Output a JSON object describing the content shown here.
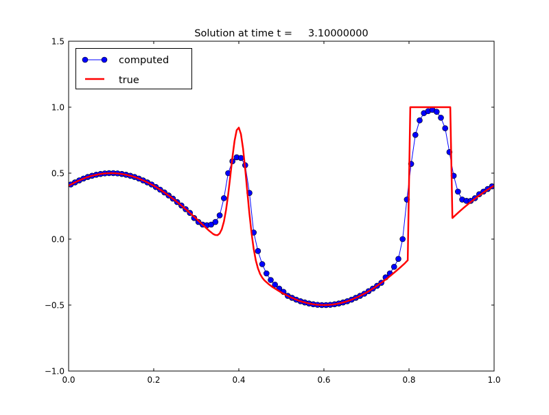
{
  "chart_data": {
    "type": "line",
    "title": "Solution at time t =     3.10000000",
    "xlabel": "",
    "ylabel": "",
    "xlim": [
      0.0,
      1.0
    ],
    "ylim": [
      -1.0,
      1.5
    ],
    "grid": false,
    "legend_placement": "top-left",
    "xticks": [
      0.0,
      0.2,
      0.4,
      0.6,
      0.8,
      1.0
    ],
    "xtick_labels": [
      "0.0",
      "0.2",
      "0.4",
      "0.6",
      "0.8",
      "1.0"
    ],
    "yticks": [
      -1.0,
      -0.5,
      0.0,
      0.5,
      1.0,
      1.5
    ],
    "ytick_labels": [
      "−1.0",
      "−0.5",
      "0.0",
      "0.5",
      "1.0",
      "1.5"
    ],
    "series": [
      {
        "name": "computed",
        "color": "#0000ff",
        "marker": "circle",
        "x": [
          0.005,
          0.015,
          0.025,
          0.035,
          0.045,
          0.055,
          0.065,
          0.075,
          0.085,
          0.095,
          0.105,
          0.115,
          0.125,
          0.135,
          0.145,
          0.155,
          0.165,
          0.175,
          0.185,
          0.195,
          0.205,
          0.215,
          0.225,
          0.235,
          0.245,
          0.255,
          0.265,
          0.275,
          0.285,
          0.295,
          0.305,
          0.315,
          0.325,
          0.335,
          0.345,
          0.355,
          0.365,
          0.375,
          0.385,
          0.395,
          0.405,
          0.415,
          0.425,
          0.435,
          0.445,
          0.455,
          0.465,
          0.475,
          0.485,
          0.495,
          0.505,
          0.515,
          0.525,
          0.535,
          0.545,
          0.555,
          0.565,
          0.575,
          0.585,
          0.595,
          0.605,
          0.615,
          0.625,
          0.635,
          0.645,
          0.655,
          0.665,
          0.675,
          0.685,
          0.695,
          0.705,
          0.715,
          0.725,
          0.735,
          0.745,
          0.755,
          0.765,
          0.775,
          0.785,
          0.795,
          0.805,
          0.815,
          0.825,
          0.835,
          0.845,
          0.855,
          0.865,
          0.875,
          0.885,
          0.895,
          0.905,
          0.915,
          0.925,
          0.935,
          0.945,
          0.955,
          0.965,
          0.975,
          0.985,
          0.995
        ],
        "y": [
          0.414,
          0.43,
          0.445,
          0.459,
          0.471,
          0.48,
          0.488,
          0.494,
          0.498,
          0.5,
          0.5,
          0.498,
          0.494,
          0.488,
          0.48,
          0.471,
          0.459,
          0.445,
          0.43,
          0.414,
          0.395,
          0.375,
          0.354,
          0.331,
          0.307,
          0.281,
          0.255,
          0.227,
          0.199,
          0.16,
          0.13,
          0.11,
          0.105,
          0.11,
          0.13,
          0.18,
          0.31,
          0.5,
          0.59,
          0.62,
          0.615,
          0.56,
          0.35,
          0.05,
          -0.09,
          -0.19,
          -0.26,
          -0.31,
          -0.345,
          -0.375,
          -0.4,
          -0.43,
          -0.445,
          -0.459,
          -0.471,
          -0.48,
          -0.488,
          -0.494,
          -0.498,
          -0.5,
          -0.5,
          -0.498,
          -0.494,
          -0.488,
          -0.48,
          -0.471,
          -0.459,
          -0.445,
          -0.43,
          -0.414,
          -0.395,
          -0.375,
          -0.354,
          -0.331,
          -0.29,
          -0.26,
          -0.21,
          -0.15,
          0.0,
          0.3,
          0.57,
          0.79,
          0.9,
          0.955,
          0.97,
          0.98,
          0.965,
          0.92,
          0.84,
          0.66,
          0.48,
          0.36,
          0.3,
          0.29,
          0.29,
          0.31,
          0.34,
          0.36,
          0.38,
          0.4
        ]
      },
      {
        "name": "true",
        "color": "#ff0000",
        "marker": "none",
        "x": [
          0.0,
          0.01,
          0.02,
          0.03,
          0.04,
          0.05,
          0.06,
          0.07,
          0.08,
          0.09,
          0.1,
          0.11,
          0.12,
          0.13,
          0.14,
          0.15,
          0.16,
          0.17,
          0.18,
          0.19,
          0.2,
          0.21,
          0.22,
          0.23,
          0.24,
          0.25,
          0.26,
          0.27,
          0.28,
          0.29,
          0.3,
          0.31,
          0.32,
          0.33,
          0.34,
          0.345,
          0.35,
          0.355,
          0.36,
          0.365,
          0.37,
          0.375,
          0.38,
          0.385,
          0.39,
          0.395,
          0.4,
          0.405,
          0.41,
          0.415,
          0.42,
          0.425,
          0.43,
          0.435,
          0.44,
          0.445,
          0.45,
          0.455,
          0.46,
          0.47,
          0.48,
          0.49,
          0.5,
          0.51,
          0.52,
          0.53,
          0.54,
          0.55,
          0.56,
          0.57,
          0.58,
          0.59,
          0.6,
          0.61,
          0.62,
          0.63,
          0.64,
          0.65,
          0.66,
          0.67,
          0.68,
          0.69,
          0.7,
          0.71,
          0.72,
          0.73,
          0.74,
          0.75,
          0.76,
          0.77,
          0.78,
          0.79,
          0.797,
          0.803,
          0.81,
          0.82,
          0.83,
          0.84,
          0.85,
          0.86,
          0.87,
          0.88,
          0.89,
          0.897,
          0.902,
          0.91,
          0.92,
          0.93,
          0.94,
          0.95,
          0.96,
          0.97,
          0.98,
          0.99,
          1.0
        ],
        "y": [
          0.405,
          0.422,
          0.438,
          0.452,
          0.465,
          0.476,
          0.484,
          0.491,
          0.496,
          0.499,
          0.5,
          0.499,
          0.496,
          0.491,
          0.484,
          0.476,
          0.465,
          0.452,
          0.438,
          0.422,
          0.405,
          0.385,
          0.365,
          0.342,
          0.319,
          0.294,
          0.268,
          0.241,
          0.213,
          0.184,
          0.155,
          0.124,
          0.094,
          0.064,
          0.038,
          0.031,
          0.03,
          0.043,
          0.075,
          0.133,
          0.221,
          0.339,
          0.477,
          0.621,
          0.745,
          0.826,
          0.845,
          0.796,
          0.685,
          0.531,
          0.358,
          0.19,
          0.043,
          -0.075,
          -0.162,
          -0.222,
          -0.264,
          -0.292,
          -0.312,
          -0.341,
          -0.365,
          -0.385,
          -0.405,
          -0.422,
          -0.438,
          -0.452,
          -0.465,
          -0.476,
          -0.484,
          -0.491,
          -0.496,
          -0.499,
          -0.5,
          -0.499,
          -0.496,
          -0.491,
          -0.484,
          -0.476,
          -0.465,
          -0.452,
          -0.438,
          -0.422,
          -0.405,
          -0.385,
          -0.365,
          -0.342,
          -0.319,
          -0.294,
          -0.268,
          -0.241,
          -0.213,
          -0.184,
          -0.16,
          1.0,
          1.0,
          1.0,
          1.0,
          1.0,
          1.0,
          1.0,
          1.0,
          1.0,
          1.0,
          1.0,
          0.16,
          0.184,
          0.213,
          0.241,
          0.268,
          0.294,
          0.319,
          0.342,
          0.365,
          0.385,
          0.405
        ]
      }
    ]
  }
}
